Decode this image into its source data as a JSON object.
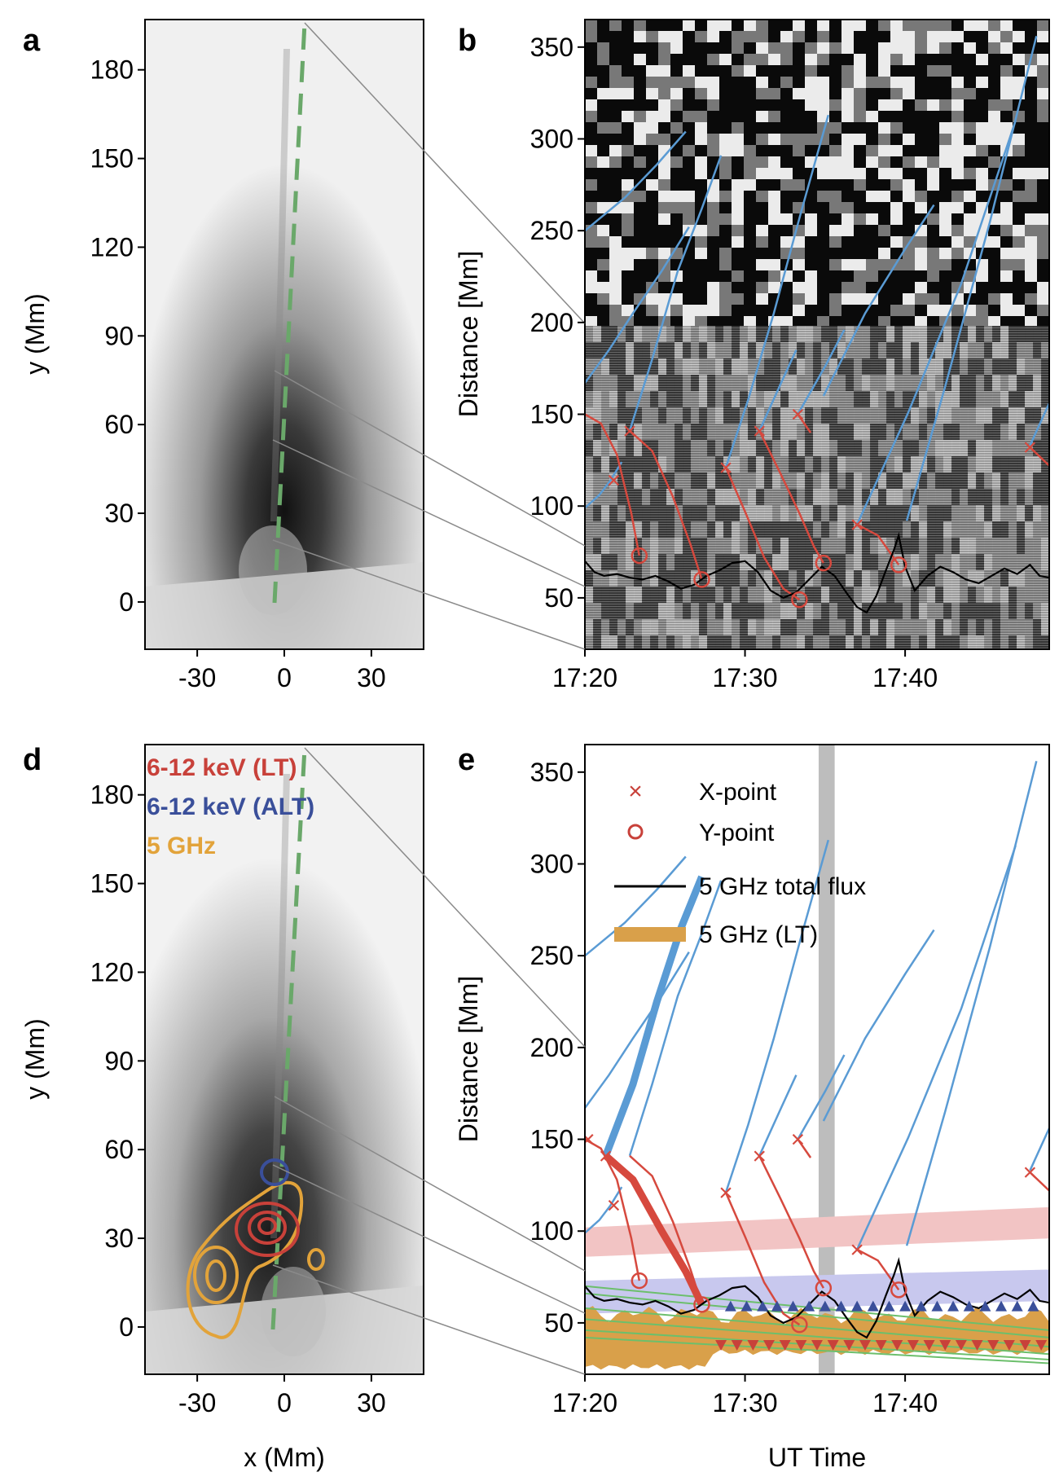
{
  "panels": {
    "a": {
      "letter": "a",
      "ylabel": "y (Mm)",
      "xlabel": "",
      "xticks": [
        "-30",
        "0",
        "30"
      ],
      "yticks": [
        "0",
        "30",
        "60",
        "90",
        "120",
        "150",
        "180"
      ]
    },
    "b": {
      "letter": "b",
      "ylabel": "Distance [Mm]",
      "xticks": [
        "17:20",
        "17:30",
        "17:40"
      ],
      "yticks": [
        "50",
        "100",
        "150",
        "200",
        "250",
        "300",
        "350"
      ]
    },
    "d": {
      "letter": "d",
      "ylabel": "y (Mm)",
      "xlabel": "x (Mm)",
      "xticks": [
        "-30",
        "0",
        "30"
      ],
      "yticks": [
        "0",
        "30",
        "60",
        "90",
        "120",
        "150",
        "180"
      ],
      "legend": [
        {
          "label": "6-12 keV (LT)",
          "color": "#c8413a"
        },
        {
          "label": "6-12 keV (ALT)",
          "color": "#3a4f9a"
        },
        {
          "label": "5 GHz",
          "color": "#e2a33a"
        }
      ]
    },
    "e": {
      "letter": "e",
      "ylabel": "Distance [Mm]",
      "xlabel": "UT Time",
      "xticks": [
        "17:20",
        "17:30",
        "17:40"
      ],
      "yticks": [
        "50",
        "100",
        "150",
        "200",
        "250",
        "300",
        "350"
      ],
      "legend": [
        {
          "label": "X-point",
          "marker": "x",
          "color": "#c8413a"
        },
        {
          "label": "Y-point",
          "marker": "o",
          "color": "#c8413a"
        },
        {
          "label": "5 GHz total flux",
          "marker": "line",
          "color": "#000000"
        },
        {
          "label": "5 GHz (LT)",
          "marker": "band",
          "color": "#d9a04a"
        }
      ]
    }
  },
  "colors": {
    "blue_track": "#5a9bd4",
    "red_track": "#d6493e",
    "flux": "#000000",
    "green_dash": "#6aa86a",
    "gray_band": "#bdbdbd",
    "pink_band": "#f2c4c4",
    "lavender_band": "#c8c8ee",
    "orange_fill": "#d9a04a",
    "green_lines": "#6cbf6c",
    "tri_up": "#3a4f9a",
    "tri_down": "#c8413a"
  },
  "chart_data": [
    {
      "panel": "b",
      "type": "line",
      "x_unit": "minutes after 17:20 UT",
      "xlim": [
        0,
        29
      ],
      "ylim": [
        22,
        365
      ],
      "x_points": [
        {
          "x": 1.8,
          "y": 114
        },
        {
          "x": 2.8,
          "y": 141
        },
        {
          "x": 8.8,
          "y": 121
        },
        {
          "x": 10.9,
          "y": 141
        },
        {
          "x": 13.3,
          "y": 150
        },
        {
          "x": 17.0,
          "y": 90
        },
        {
          "x": 27.8,
          "y": 132
        }
      ],
      "y_points": [
        {
          "x": 3.4,
          "y": 73
        },
        {
          "x": 7.3,
          "y": 60
        },
        {
          "x": 13.4,
          "y": 49
        },
        {
          "x": 14.9,
          "y": 69
        },
        {
          "x": 19.6,
          "y": 68
        }
      ],
      "blue_tracks": [
        [
          [
            0,
            167
          ],
          [
            1.5,
            185
          ],
          [
            3,
            205
          ],
          [
            4.8,
            228
          ],
          [
            6.5,
            252
          ]
        ],
        [
          [
            0,
            250
          ],
          [
            2.5,
            268
          ],
          [
            4.5,
            286
          ],
          [
            6.3,
            304
          ]
        ],
        [
          [
            0,
            99
          ],
          [
            0.9,
            106
          ],
          [
            1.6,
            114
          ],
          [
            2.3,
            124
          ]
        ],
        [
          [
            2.8,
            141
          ],
          [
            4.2,
            180
          ],
          [
            5.8,
            228
          ],
          [
            7.3,
            262
          ],
          [
            8.5,
            291
          ]
        ],
        [
          [
            8.8,
            121
          ],
          [
            10.2,
            158
          ],
          [
            11.8,
            205
          ],
          [
            13.5,
            260
          ],
          [
            15.2,
            313
          ]
        ],
        [
          [
            10.9,
            141
          ],
          [
            12.3,
            168
          ],
          [
            13.2,
            185
          ]
        ],
        [
          [
            13.3,
            150
          ],
          [
            15.0,
            176
          ],
          [
            16.2,
            196
          ]
        ],
        [
          [
            17.0,
            90
          ],
          [
            20.2,
            151
          ],
          [
            23.5,
            221
          ],
          [
            26.9,
            310
          ]
        ],
        [
          [
            14.9,
            160
          ],
          [
            17.5,
            205
          ],
          [
            20.0,
            240
          ],
          [
            21.8,
            264
          ]
        ],
        [
          [
            20.1,
            92
          ],
          [
            22.5,
            165
          ],
          [
            25.3,
            255
          ],
          [
            28.2,
            356
          ]
        ],
        [
          [
            27.8,
            133
          ],
          [
            29,
            156
          ]
        ]
      ],
      "red_tracks": [
        [
          [
            0,
            150
          ],
          [
            1.0,
            145
          ],
          [
            2.0,
            128
          ],
          [
            2.9,
            96
          ],
          [
            3.4,
            73
          ]
        ],
        [
          [
            2.8,
            141
          ],
          [
            4.2,
            130
          ],
          [
            5.5,
            105
          ],
          [
            6.6,
            79
          ],
          [
            7.3,
            60
          ]
        ],
        [
          [
            8.8,
            121
          ],
          [
            10.0,
            97
          ],
          [
            11.2,
            72
          ],
          [
            12.4,
            55
          ],
          [
            13.4,
            49
          ]
        ],
        [
          [
            10.9,
            141
          ],
          [
            12.2,
            118
          ],
          [
            13.4,
            96
          ],
          [
            14.3,
            78
          ],
          [
            14.9,
            69
          ]
        ],
        [
          [
            13.3,
            150
          ],
          [
            14.1,
            140
          ]
        ],
        [
          [
            17.0,
            90
          ],
          [
            18.3,
            84
          ],
          [
            19.6,
            68
          ]
        ],
        [
          [
            27.8,
            132
          ],
          [
            29,
            122
          ]
        ]
      ],
      "flux_total": [
        [
          0,
          70
        ],
        [
          0.6,
          64
        ],
        [
          1.2,
          62
        ],
        [
          2.0,
          63
        ],
        [
          2.8,
          61
        ],
        [
          3.6,
          60
        ],
        [
          4.4,
          62
        ],
        [
          5.2,
          59
        ],
        [
          6.0,
          55
        ],
        [
          6.8,
          57
        ],
        [
          7.6,
          62
        ],
        [
          8.4,
          65
        ],
        [
          9.2,
          69
        ],
        [
          10.0,
          70
        ],
        [
          10.8,
          64
        ],
        [
          11.6,
          54
        ],
        [
          12.4,
          50
        ],
        [
          13.2,
          53
        ],
        [
          14.0,
          60
        ],
        [
          14.8,
          67
        ],
        [
          15.6,
          62
        ],
        [
          16.4,
          52
        ],
        [
          17.0,
          45
        ],
        [
          17.6,
          42
        ],
        [
          18.2,
          51
        ],
        [
          18.8,
          65
        ],
        [
          19.3,
          76
        ],
        [
          19.6,
          84
        ],
        [
          20.0,
          67
        ],
        [
          20.6,
          54
        ],
        [
          21.4,
          62
        ],
        [
          22.2,
          67
        ],
        [
          23.0,
          64
        ],
        [
          23.8,
          60
        ],
        [
          24.6,
          58
        ],
        [
          25.4,
          62
        ],
        [
          26.2,
          66
        ],
        [
          27.0,
          63
        ],
        [
          27.8,
          68
        ],
        [
          28.4,
          62
        ],
        [
          29,
          61
        ]
      ]
    },
    {
      "panel": "e",
      "type": "line",
      "x_unit": "minutes after 17:20 UT",
      "xlim": [
        0,
        29
      ],
      "ylim": [
        22,
        365
      ],
      "x_points": [
        {
          "x": 0.2,
          "y": 150
        },
        {
          "x": 1.8,
          "y": 114
        },
        {
          "x": 1.3,
          "y": 141
        },
        {
          "x": 8.8,
          "y": 121
        },
        {
          "x": 10.9,
          "y": 141
        },
        {
          "x": 13.3,
          "y": 150
        },
        {
          "x": 17.0,
          "y": 90
        },
        {
          "x": 27.8,
          "y": 132
        }
      ],
      "y_points": [
        {
          "x": 3.4,
          "y": 73
        },
        {
          "x": 7.3,
          "y": 60
        },
        {
          "x": 13.4,
          "y": 49
        },
        {
          "x": 14.9,
          "y": 69
        },
        {
          "x": 19.6,
          "y": 68
        }
      ],
      "gray_band_x": [
        14.6,
        15.6
      ],
      "pink_band": [
        [
          0,
          86
        ],
        [
          0,
          102
        ],
        [
          29,
          113
        ],
        [
          29,
          96
        ]
      ],
      "lavender_band": [
        [
          0,
          55
        ],
        [
          0,
          73
        ],
        [
          29,
          79
        ],
        [
          29,
          62
        ]
      ],
      "up_triangles_x": [
        9.1,
        10.1,
        11.1,
        12.0,
        13.0,
        14.0,
        15.0,
        16.0,
        17.0,
        18.0,
        19.0,
        20.0,
        21.0,
        22.0,
        23.0,
        24.0,
        25.0,
        26.0,
        27.0,
        28.0
      ],
      "up_triangles_y": 59,
      "down_triangles_x": [
        8.5,
        9.5,
        10.5,
        11.5,
        12.5,
        13.5,
        14.5,
        15.5,
        16.5,
        17.5,
        18.5,
        19.5,
        20.5,
        21.5,
        22.5,
        23.5,
        24.5,
        25.5,
        26.5,
        27.5,
        28.5
      ],
      "down_triangles_y": 38
    }
  ]
}
